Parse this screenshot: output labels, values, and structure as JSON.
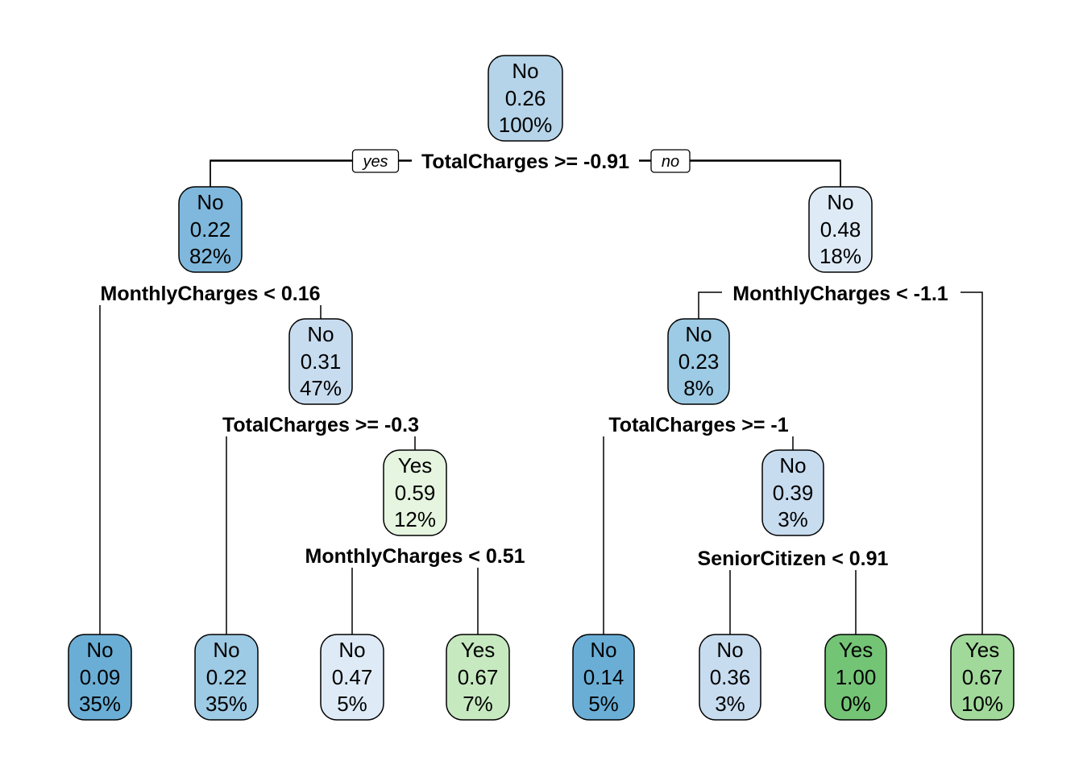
{
  "colors": {
    "blue_dark": "#6aaed6",
    "blue_mid": "#7fb8dc",
    "blue_light": "#9dcae4",
    "blue_pale": "#b5d4e9",
    "blue_paler": "#c8dcf0",
    "blue_palest": "#deebf7",
    "green_pale": "#e5f5e0",
    "green_light": "#c7e9c0",
    "green_mid": "#a1d99b",
    "green_dark": "#74c476"
  },
  "branch_labels": {
    "yes": "yes",
    "no": "no"
  },
  "nodes": {
    "root": {
      "class": "No",
      "prob": "0.26",
      "pct": "100%",
      "color": "#b5d4e9"
    },
    "n_left": {
      "class": "No",
      "prob": "0.22",
      "pct": "82%",
      "color": "#7fb8dc"
    },
    "n_right": {
      "class": "No",
      "prob": "0.48",
      "pct": "18%",
      "color": "#deebf7"
    },
    "n_l2": {
      "class": "No",
      "prob": "0.31",
      "pct": "47%",
      "color": "#c8dcf0"
    },
    "n_r2": {
      "class": "No",
      "prob": "0.23",
      "pct": "8%",
      "color": "#9dcae4"
    },
    "n_l3": {
      "class": "Yes",
      "prob": "0.59",
      "pct": "12%",
      "color": "#e5f5e0"
    },
    "n_r3": {
      "class": "No",
      "prob": "0.39",
      "pct": "3%",
      "color": "#c8dcf0"
    },
    "leaf1": {
      "class": "No",
      "prob": "0.09",
      "pct": "35%",
      "color": "#6aaed6"
    },
    "leaf2": {
      "class": "No",
      "prob": "0.22",
      "pct": "35%",
      "color": "#9dcae4"
    },
    "leaf3": {
      "class": "No",
      "prob": "0.47",
      "pct": "5%",
      "color": "#deebf7"
    },
    "leaf4": {
      "class": "Yes",
      "prob": "0.67",
      "pct": "7%",
      "color": "#c7e9c0"
    },
    "leaf5": {
      "class": "No",
      "prob": "0.14",
      "pct": "5%",
      "color": "#6aaed6"
    },
    "leaf6": {
      "class": "No",
      "prob": "0.36",
      "pct": "3%",
      "color": "#c8dcf0"
    },
    "leaf7": {
      "class": "Yes",
      "prob": "1.00",
      "pct": "0%",
      "color": "#74c476"
    },
    "leaf8": {
      "class": "Yes",
      "prob": "0.67",
      "pct": "10%",
      "color": "#a1d99b"
    }
  },
  "splits": {
    "root": "TotalCharges >= -0.91",
    "n_left": "MonthlyCharges < 0.16",
    "n_right": "MonthlyCharges < -1.1",
    "n_l2": "TotalCharges >= -0.3",
    "n_r2": "TotalCharges >= -1",
    "n_l3": "MonthlyCharges < 0.51",
    "n_r3": "SeniorCitizen < 0.91"
  }
}
